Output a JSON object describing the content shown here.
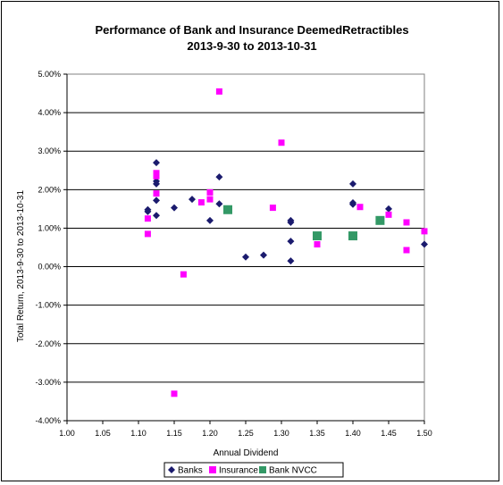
{
  "chart_data": {
    "type": "scatter",
    "title": "Performance of Bank and Insurance DeemedRetractibles",
    "subtitle": "2013-9-30 to 2013-10-31",
    "xlabel": "Annual Dividend",
    "ylabel": "Total Return, 2013-9-30 to 2013-10-31",
    "xlim": [
      1.0,
      1.5
    ],
    "ylim": [
      -4.0,
      5.0
    ],
    "x_ticks": [
      "1.00",
      "1.05",
      "1.10",
      "1.15",
      "1.20",
      "1.25",
      "1.30",
      "1.35",
      "1.40",
      "1.45",
      "1.50"
    ],
    "y_ticks": [
      "-4.00%",
      "-3.00%",
      "-2.00%",
      "-1.00%",
      "0.00%",
      "1.00%",
      "2.00%",
      "3.00%",
      "4.00%",
      "5.00%"
    ],
    "grid": "horizontal",
    "legend": "bottom",
    "series": [
      {
        "name": "Banks",
        "color": "#1b1b6e",
        "marker": "diamond",
        "points": [
          [
            1.113,
            1.48
          ],
          [
            1.113,
            1.43
          ],
          [
            1.125,
            2.7
          ],
          [
            1.125,
            2.22
          ],
          [
            1.125,
            2.15
          ],
          [
            1.125,
            1.72
          ],
          [
            1.125,
            1.33
          ],
          [
            1.15,
            1.53
          ],
          [
            1.175,
            1.75
          ],
          [
            1.2,
            1.2
          ],
          [
            1.213,
            2.33
          ],
          [
            1.213,
            1.63
          ],
          [
            1.25,
            0.25
          ],
          [
            1.275,
            0.3
          ],
          [
            1.313,
            1.2
          ],
          [
            1.313,
            1.15
          ],
          [
            1.313,
            0.66
          ],
          [
            1.313,
            0.15
          ],
          [
            1.4,
            2.15
          ],
          [
            1.4,
            1.66
          ],
          [
            1.4,
            1.62
          ],
          [
            1.45,
            1.5
          ],
          [
            1.5,
            0.58
          ]
        ]
      },
      {
        "name": "Insurance",
        "color": "#ff00ff",
        "marker": "square",
        "points": [
          [
            1.113,
            1.25
          ],
          [
            1.113,
            0.85
          ],
          [
            1.125,
            2.43
          ],
          [
            1.125,
            2.35
          ],
          [
            1.125,
            1.9
          ],
          [
            1.15,
            -3.3
          ],
          [
            1.163,
            -0.2
          ],
          [
            1.188,
            1.67
          ],
          [
            1.2,
            1.93
          ],
          [
            1.2,
            1.75
          ],
          [
            1.213,
            4.55
          ],
          [
            1.288,
            1.53
          ],
          [
            1.3,
            3.22
          ],
          [
            1.35,
            0.58
          ],
          [
            1.41,
            1.55
          ],
          [
            1.45,
            1.35
          ],
          [
            1.475,
            1.15
          ],
          [
            1.475,
            0.43
          ],
          [
            1.5,
            0.92
          ]
        ]
      },
      {
        "name": "Bank NVCC",
        "color": "#339966",
        "marker": "square",
        "points": [
          [
            1.225,
            1.48
          ],
          [
            1.35,
            0.8
          ],
          [
            1.4,
            0.8
          ],
          [
            1.438,
            1.2
          ]
        ]
      }
    ]
  }
}
